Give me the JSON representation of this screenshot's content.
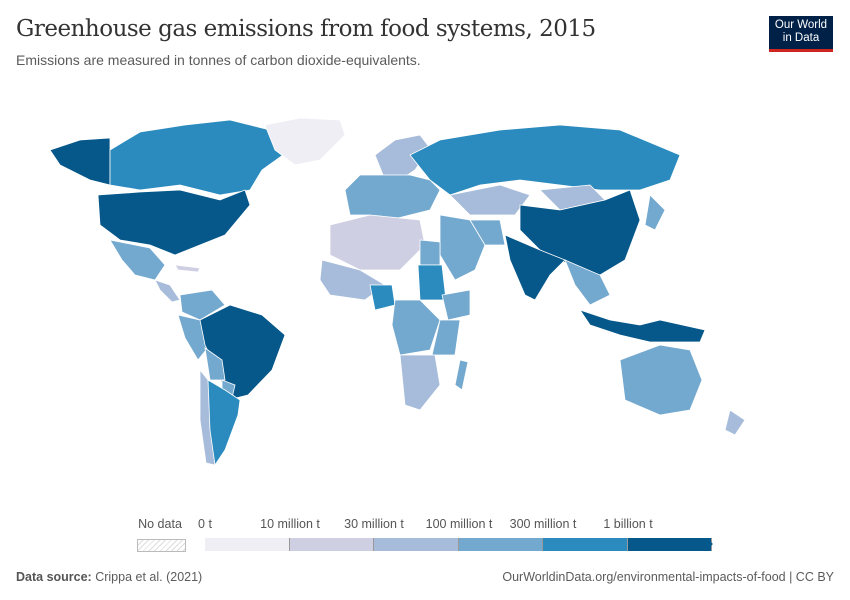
{
  "header": {
    "title": "Greenhouse gas emissions from food systems, 2015",
    "subtitle": "Emissions are measured in tonnes of carbon dioxide-equivalents.",
    "logo": "Our World in Data"
  },
  "legend": {
    "no_data_label": "No data",
    "tick_labels": [
      "0 t",
      "10 million t",
      "30 million t",
      "100 million t",
      "300 million t",
      "1 billion t"
    ],
    "bin_colors": [
      "#efeef5",
      "#cfcfe4",
      "#a6bcda",
      "#73a8cf",
      "#2b8bbe",
      "#06578a"
    ]
  },
  "map_fills": {
    "canada": 4,
    "usa": 5,
    "alaska": 5,
    "greenland": 0,
    "mexico": 3,
    "central-america": 2,
    "cuba": 1,
    "colombia-venezuela": 3,
    "peru": 3,
    "brazil": 5,
    "bolivia": 3,
    "paraguay": 3,
    "argentina": 4,
    "chile": 2,
    "europe": 3,
    "scandinavia": 2,
    "russia": 4,
    "kazakhstan": 2,
    "mongolia": 2,
    "china": 5,
    "india": 5,
    "middle-east": 3,
    "iran": 3,
    "southeast-asia": 3,
    "indonesia": 5,
    "japan": 3,
    "north-africa": 1,
    "egypt": 3,
    "west-africa": 2,
    "nigeria": 4,
    "sudan": 4,
    "ethiopia": 3,
    "central-africa": 3,
    "east-africa": 3,
    "southern-africa": 2,
    "madagascar": 3,
    "australia": 3,
    "new-zealand": 2
  },
  "footer": {
    "source_label": "Data source:",
    "source": "Crippa et al. (2021)",
    "url": "OurWorldinData.org/environmental-impacts-of-food | CC BY"
  }
}
